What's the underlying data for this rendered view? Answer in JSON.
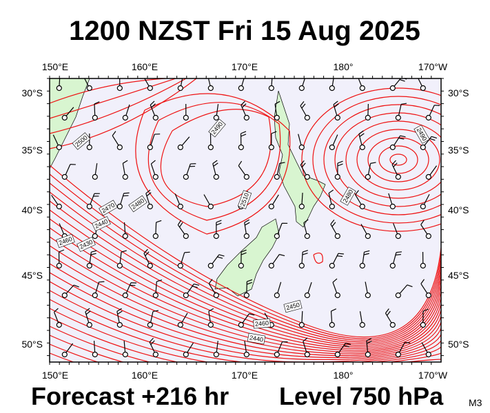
{
  "header": {
    "title": "1200 NZST Fri 15 Aug 2025"
  },
  "axes": {
    "top": [
      "150°E",
      "160°E",
      "170°E",
      "180°",
      "170°W"
    ],
    "bottom": [
      "150°E",
      "160°E",
      "170°E",
      "180°",
      "170°W"
    ],
    "left": [
      "30°S",
      "35°S",
      "40°S",
      "45°S",
      "50°S"
    ],
    "right": [
      "30°S",
      "35°S",
      "40°S",
      "45°S",
      "50°S"
    ]
  },
  "contour_labels": [
    "2500",
    "2490",
    "2510",
    "2480",
    "2470",
    "2440",
    "2460",
    "2430",
    "2480",
    "2450",
    "2460",
    "2440",
    "2490"
  ],
  "footer": {
    "forecast": "Forecast +216 hr",
    "level": "Level 750 hPa",
    "code": "M3"
  }
}
